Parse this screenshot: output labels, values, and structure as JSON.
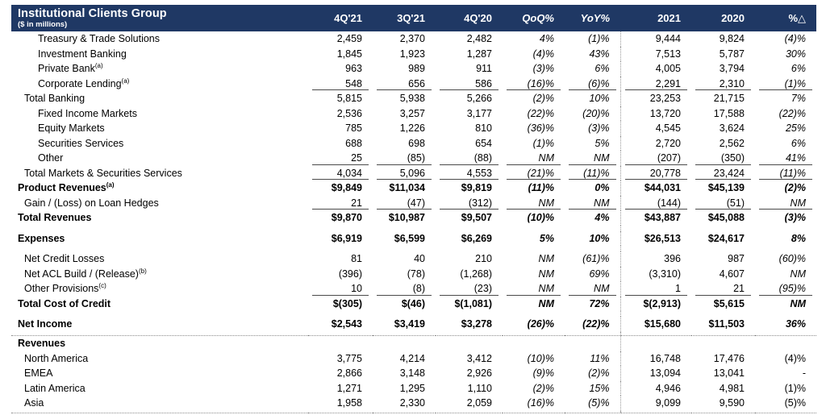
{
  "header": {
    "title": "Institutional Clients Group",
    "subtitle": "($ in millions)",
    "columns": [
      "4Q'21",
      "3Q'21",
      "4Q'20",
      "QoQ%",
      "YoY%",
      "2021",
      "2020",
      "%△"
    ],
    "bg_color": "#1f3864",
    "text_color": "#ffffff"
  },
  "column_keys": [
    "q4-21",
    "q3-21",
    "q4-20",
    "qoq-pct",
    "yoy-pct",
    "fy-2021",
    "fy-2020",
    "pct-delta"
  ],
  "rows": [
    {
      "type": "row",
      "label": "Treasury & Trade Solutions",
      "indent": 2,
      "values": [
        "2,459",
        "2,370",
        "2,482",
        "4%",
        "(1)%",
        "9,444",
        "9,824",
        "(4)%"
      ]
    },
    {
      "type": "row",
      "label": "Investment Banking",
      "indent": 2,
      "values": [
        "1,845",
        "1,923",
        "1,287",
        "(4)%",
        "43%",
        "7,513",
        "5,787",
        "30%"
      ]
    },
    {
      "type": "row",
      "label": "Private Bank",
      "sup": "(a)",
      "indent": 2,
      "values": [
        "963",
        "989",
        "911",
        "(3)%",
        "6%",
        "4,005",
        "3,794",
        "6%"
      ]
    },
    {
      "type": "row",
      "label": "Corporate Lending",
      "sup": "(a)",
      "indent": 2,
      "underline": true,
      "values": [
        "548",
        "656",
        "586",
        "(16)%",
        "(6)%",
        "2,291",
        "2,310",
        "(1)%"
      ]
    },
    {
      "type": "row",
      "label": "Total Banking",
      "indent": 1,
      "values": [
        "5,815",
        "5,938",
        "5,266",
        "(2)%",
        "10%",
        "23,253",
        "21,715",
        "7%"
      ]
    },
    {
      "type": "row",
      "label": "Fixed Income Markets",
      "indent": 2,
      "values": [
        "2,536",
        "3,257",
        "3,177",
        "(22)%",
        "(20)%",
        "13,720",
        "17,588",
        "(22)%"
      ]
    },
    {
      "type": "row",
      "label": "Equity Markets",
      "indent": 2,
      "values": [
        "785",
        "1,226",
        "810",
        "(36)%",
        "(3)%",
        "4,545",
        "3,624",
        "25%"
      ]
    },
    {
      "type": "row",
      "label": "Securities Services",
      "indent": 2,
      "values": [
        "688",
        "698",
        "654",
        "(1)%",
        "5%",
        "2,720",
        "2,562",
        "6%"
      ]
    },
    {
      "type": "row",
      "label": "Other",
      "indent": 2,
      "underline": true,
      "values": [
        "25",
        "(85)",
        "(88)",
        "NM",
        "NM",
        "(207)",
        "(350)",
        "41%"
      ]
    },
    {
      "type": "row",
      "label": "Total Markets & Securities Services",
      "indent": 1,
      "underline": true,
      "values": [
        "4,034",
        "5,096",
        "4,553",
        "(21)%",
        "(11)%",
        "20,778",
        "23,424",
        "(11)%"
      ]
    },
    {
      "type": "row",
      "label": "Product Revenues",
      "sup": "(a)",
      "indent": 0,
      "bold": true,
      "values": [
        "$9,849",
        "$11,034",
        "$9,819",
        "(11)%",
        "0%",
        "$44,031",
        "$45,139",
        "(2)%"
      ]
    },
    {
      "type": "row",
      "label": "Gain / (Loss) on Loan Hedges",
      "indent": 1,
      "underline": true,
      "values": [
        "21",
        "(47)",
        "(312)",
        "NM",
        "NM",
        "(144)",
        "(51)",
        "NM"
      ]
    },
    {
      "type": "row",
      "label": "Total Revenues",
      "indent": 0,
      "bold": true,
      "values": [
        "$9,870",
        "$10,987",
        "$9,507",
        "(10)%",
        "4%",
        "$43,887",
        "$45,088",
        "(3)%"
      ]
    },
    {
      "type": "spacer"
    },
    {
      "type": "row",
      "label": "Expenses",
      "indent": 0,
      "bold": true,
      "values": [
        "$6,919",
        "$6,599",
        "$6,269",
        "5%",
        "10%",
        "$26,513",
        "$24,617",
        "8%"
      ]
    },
    {
      "type": "spacer"
    },
    {
      "type": "row",
      "label": "Net Credit Losses",
      "indent": 1,
      "values": [
        "81",
        "40",
        "210",
        "NM",
        "(61)%",
        "396",
        "987",
        "(60)%"
      ]
    },
    {
      "type": "row",
      "label": "Net ACL Build / (Release)",
      "sup": "(b)",
      "indent": 1,
      "values": [
        "(396)",
        "(78)",
        "(1,268)",
        "NM",
        "69%",
        "(3,310)",
        "4,607",
        "NM"
      ]
    },
    {
      "type": "row",
      "label": "Other Provisions",
      "sup": "(c)",
      "indent": 1,
      "underline": true,
      "values": [
        "10",
        "(8)",
        "(23)",
        "NM",
        "NM",
        "1",
        "21",
        "(95)%"
      ]
    },
    {
      "type": "row",
      "label": "Total Cost of Credit",
      "indent": 0,
      "bold": true,
      "values": [
        "$(305)",
        "$(46)",
        "$(1,081)",
        "NM",
        "72%",
        "$(2,913)",
        "$5,615",
        "NM"
      ]
    },
    {
      "type": "spacer"
    },
    {
      "type": "row",
      "label": "Net Income",
      "indent": 0,
      "bold": true,
      "values": [
        "$2,543",
        "$3,419",
        "$3,278",
        "(26)%",
        "(22)%",
        "$15,680",
        "$11,503",
        "36%"
      ]
    },
    {
      "type": "rule"
    },
    {
      "type": "row",
      "label": "Revenues",
      "indent": 0,
      "bold": true,
      "values": [
        "",
        "",
        "",
        "",
        "",
        "",
        "",
        ""
      ]
    },
    {
      "type": "row",
      "label": "North America",
      "indent": 1,
      "regional": true,
      "values": [
        "3,775",
        "4,214",
        "3,412",
        "(10)%",
        "11%",
        "16,748",
        "17,476",
        "(4)%"
      ]
    },
    {
      "type": "row",
      "label": "EMEA",
      "indent": 1,
      "regional": true,
      "values": [
        "2,866",
        "3,148",
        "2,926",
        "(9)%",
        "(2)%",
        "13,094",
        "13,041",
        "-"
      ]
    },
    {
      "type": "row",
      "label": "Latin America",
      "indent": 1,
      "regional": true,
      "values": [
        "1,271",
        "1,295",
        "1,110",
        "(2)%",
        "15%",
        "4,946",
        "4,981",
        "(1)%"
      ]
    },
    {
      "type": "row",
      "label": "Asia",
      "indent": 1,
      "regional": true,
      "values": [
        "1,958",
        "2,330",
        "2,059",
        "(16)%",
        "(5)%",
        "9,099",
        "9,590",
        "(5)%"
      ]
    },
    {
      "type": "endrule"
    }
  ]
}
